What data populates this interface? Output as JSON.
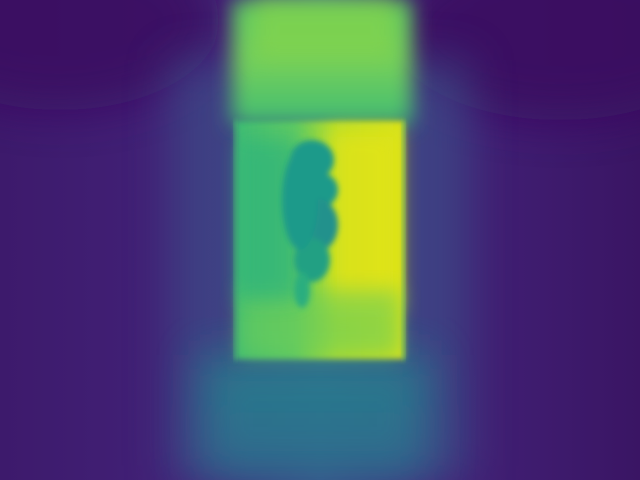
{
  "image": {
    "kind": "depth-map",
    "colormap": "viridis",
    "palette": {
      "far": "#440154",
      "deep": "#3b1d6e",
      "mid_purple": "#45327f",
      "teal": "#21918c",
      "green": "#35b779",
      "lime": "#90d743",
      "near": "#fde725"
    }
  }
}
